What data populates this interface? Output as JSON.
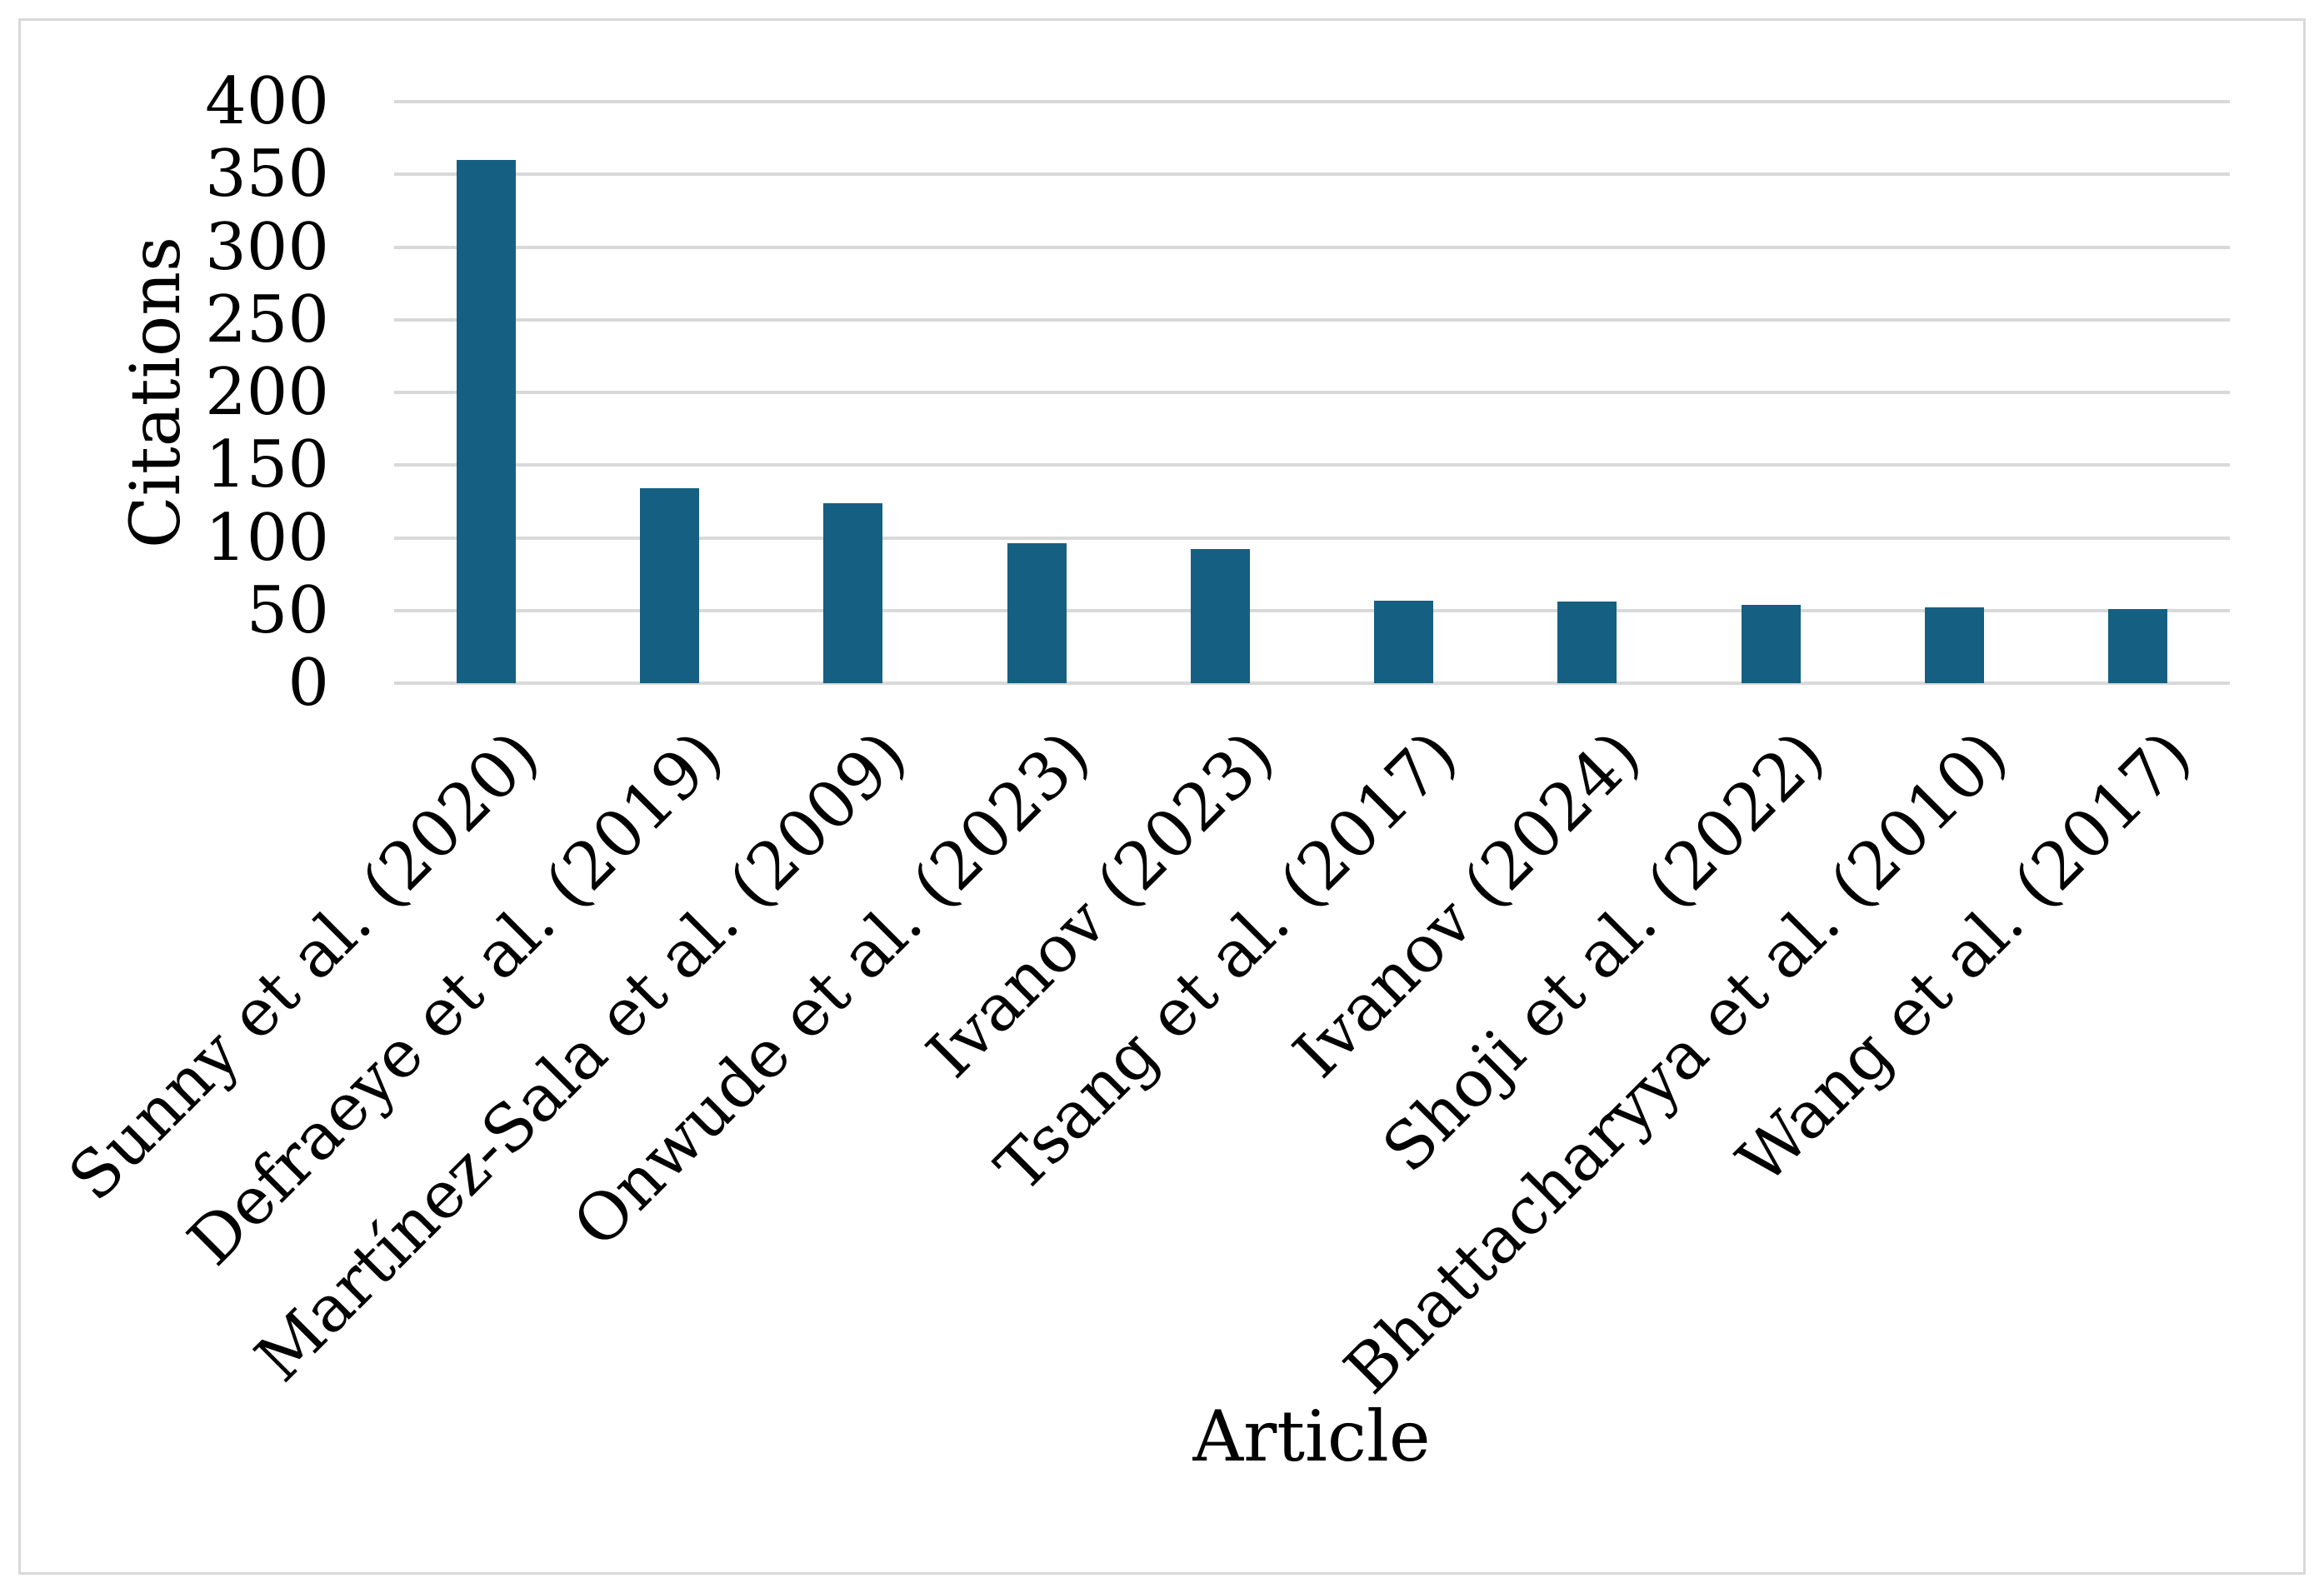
{
  "figure": {
    "background_color": "#FFFFFF",
    "frame_border_color": "#D9D9D9"
  },
  "chart_data": {
    "type": "bar",
    "title": "",
    "xlabel": "Article",
    "ylabel": "Citations",
    "categories": [
      "Sunny et al. (2020)",
      "Defraeye et al. (2019)",
      "Martínez-Sala et al. (2009)",
      "Onwude et al. (2023)",
      "Ivanov (2023)",
      "Tsang et al. (2017)",
      "Ivanov (2024)",
      "Shoji et al. (2022)",
      "Bhattacharyya et al. (2010)",
      "Wang et al. (2017)"
    ],
    "values": [
      360,
      134,
      124,
      96,
      92,
      57,
      56,
      54,
      52,
      51
    ],
    "ylim": [
      0,
      400
    ],
    "yticks": [
      0,
      50,
      100,
      150,
      200,
      250,
      300,
      350,
      400
    ],
    "grid": "horizontal",
    "gridline_color": "#D9D9D9",
    "bar_color": "#156082",
    "legend": "none",
    "x_tick_rotation_deg": 45
  }
}
